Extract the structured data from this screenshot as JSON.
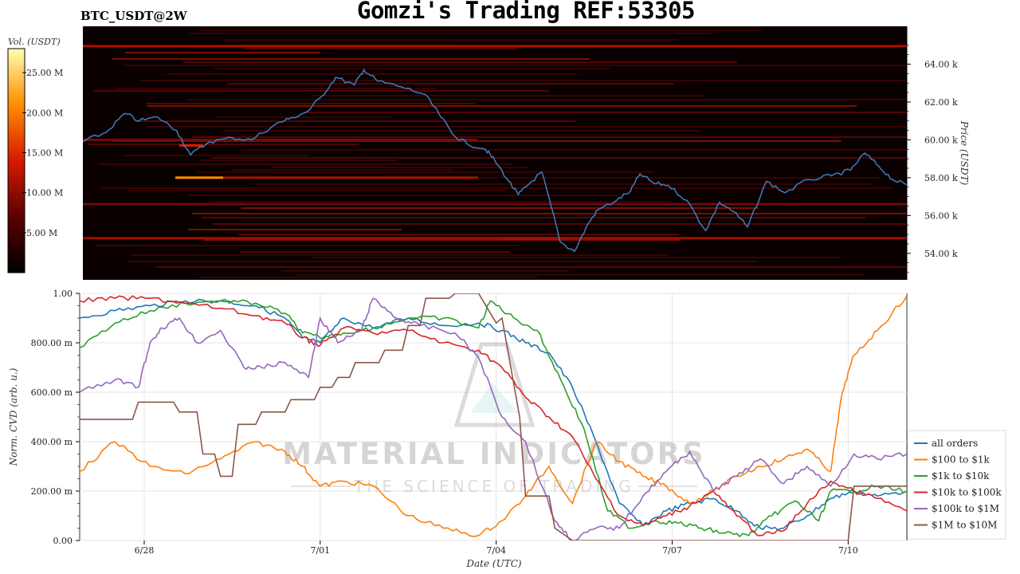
{
  "title": "Gomzi's Trading REF:53305",
  "ticker": "BTC_USDT@2W",
  "colors": {
    "price_line": "#3b7fc1",
    "heatmap_bg": "#0a0000",
    "grid": "#e6e6e6"
  },
  "chart_data": [
    {
      "type": "heatmap",
      "subtitle": "BTC_USDT@2W",
      "ylabel": "Price (USDT)",
      "colorbar_label": "Vol. (USDT)",
      "colorbar_ticks": [
        "25.00 M",
        "20.00 M",
        "15.00 M",
        "10.00 M",
        "5.00 M"
      ],
      "colorbar_range": [
        0,
        28
      ],
      "y_ticks": [
        "64.00 k",
        "62.00 k",
        "60.00 k",
        "58.00 k",
        "56.00 k",
        "54.00 k"
      ],
      "y_tick_values": [
        64000,
        62000,
        60000,
        58000,
        56000,
        54000
      ],
      "ylim": [
        52600,
        66000
      ],
      "xlim": [
        0,
        14
      ],
      "price_series": [
        [
          0,
          59.9
        ],
        [
          0.5,
          60.4
        ],
        [
          0.9,
          61.4
        ],
        [
          1.2,
          61
        ],
        [
          1.6,
          61.2
        ],
        [
          2,
          60.5
        ],
        [
          2.3,
          59.2
        ],
        [
          2.7,
          59.9
        ],
        [
          3.2,
          60.1
        ],
        [
          3.6,
          60
        ],
        [
          4.1,
          60.8
        ],
        [
          4.4,
          61.1
        ],
        [
          4.8,
          61.5
        ],
        [
          5.1,
          62.3
        ],
        [
          5.4,
          63.3
        ],
        [
          5.8,
          62.9
        ],
        [
          6,
          63.7
        ],
        [
          6.3,
          63.1
        ],
        [
          6.8,
          62.8
        ],
        [
          7.3,
          62.4
        ],
        [
          7.6,
          61.4
        ],
        [
          7.9,
          60.3
        ],
        [
          8.2,
          59.8
        ],
        [
          8.6,
          59.5
        ],
        [
          8.8,
          58.9
        ],
        [
          9.1,
          57.8
        ],
        [
          9.3,
          57.1
        ],
        [
          9.5,
          57.6
        ],
        [
          9.8,
          58.3
        ],
        [
          10,
          56.5
        ],
        [
          10.2,
          54.6
        ],
        [
          10.5,
          54.1
        ],
        [
          10.8,
          55.6
        ],
        [
          11,
          56.3
        ],
        [
          11.4,
          56.8
        ],
        [
          11.7,
          57.3
        ],
        [
          11.9,
          58.2
        ],
        [
          12.2,
          57.7
        ],
        [
          12.5,
          57.6
        ],
        [
          12.9,
          56.8
        ],
        [
          13.3,
          55.2
        ],
        [
          13.6,
          56.7
        ],
        [
          13.9,
          56.2
        ],
        [
          14.2,
          55.4
        ],
        [
          14.6,
          57.8
        ],
        [
          15,
          57.2
        ],
        [
          15.5,
          57.9
        ],
        [
          16,
          58.1
        ],
        [
          16.4,
          58.4
        ],
        [
          16.7,
          59.3
        ],
        [
          17,
          58.6
        ],
        [
          17.3,
          57.9
        ],
        [
          17.6,
          57.6
        ]
      ],
      "price_unit": "k USDT",
      "price_x_domain": [
        0,
        17.6
      ]
    },
    {
      "type": "line",
      "ylabel": "Norm. CVD (arb. u.)",
      "xlabel": "Date (UTC)",
      "x_ticks": [
        "6/28",
        "7/01",
        "7/04",
        "7/07",
        "7/10"
      ],
      "x_tick_values": [
        1.1,
        4.1,
        7.1,
        10.1,
        13.1
      ],
      "xlim": [
        0,
        14.1
      ],
      "y_ticks": [
        "1.00",
        "800.00 m",
        "600.00 m",
        "400.00 m",
        "200.00 m",
        "0.00"
      ],
      "y_tick_values": [
        1.0,
        0.8,
        0.6,
        0.4,
        0.2,
        0.0
      ],
      "ylim": [
        0,
        1.0
      ],
      "legend_position": "lower-right",
      "watermark": [
        "MATERIAL INDICATORS",
        "THE SCIENCE OF TRADING"
      ],
      "series": [
        {
          "name": "all orders",
          "color": "#1f77b4",
          "x": [
            0,
            0.6,
            1.2,
            1.8,
            2.4,
            3,
            3.5,
            3.8,
            4.1,
            4.5,
            5,
            5.6,
            6.2,
            6.8,
            7.2,
            7.6,
            8,
            8.4,
            8.8,
            9.2,
            9.6,
            10,
            10.4,
            10.8,
            11.2,
            11.6,
            12,
            12.4,
            12.8,
            13.2,
            13.6,
            14.1
          ],
          "y": [
            0.9,
            0.93,
            0.95,
            0.97,
            0.97,
            0.95,
            0.9,
            0.82,
            0.8,
            0.9,
            0.86,
            0.9,
            0.87,
            0.88,
            0.85,
            0.8,
            0.76,
            0.62,
            0.4,
            0.15,
            0.06,
            0.12,
            0.15,
            0.17,
            0.12,
            0.05,
            0.05,
            0.1,
            0.17,
            0.2,
            0.18,
            0.2
          ]
        },
        {
          "name": "$100 to $1k",
          "color": "#ff7f0e",
          "x": [
            0,
            0.6,
            1.2,
            1.8,
            2.4,
            3,
            3.5,
            3.8,
            4.1,
            4.5,
            5,
            5.6,
            6.2,
            6.8,
            7.2,
            7.6,
            8,
            8.4,
            8.8,
            9.2,
            9.6,
            10,
            10.4,
            10.8,
            11.2,
            11.6,
            12,
            12.4,
            12.8,
            13,
            13.2,
            13.6,
            14.1
          ],
          "y": [
            0.28,
            0.4,
            0.3,
            0.27,
            0.33,
            0.4,
            0.36,
            0.3,
            0.22,
            0.24,
            0.22,
            0.1,
            0.05,
            0.02,
            0.08,
            0.18,
            0.3,
            0.15,
            0.4,
            0.32,
            0.26,
            0.22,
            0.15,
            0.2,
            0.26,
            0.3,
            0.33,
            0.37,
            0.28,
            0.6,
            0.75,
            0.85,
            0.99
          ]
        },
        {
          "name": "$1k to $10k",
          "color": "#2ca02c",
          "x": [
            0,
            0.6,
            1.2,
            1.8,
            2.4,
            3,
            3.5,
            3.8,
            4.1,
            4.5,
            5,
            5.6,
            6.2,
            6.8,
            7,
            7.4,
            7.8,
            8.2,
            8.6,
            9,
            9.4,
            9.8,
            10.2,
            10.6,
            11,
            11.4,
            11.8,
            12.2,
            12.6,
            12.8,
            13.2,
            13.6,
            14.1
          ],
          "y": [
            0.78,
            0.88,
            0.93,
            0.96,
            0.97,
            0.96,
            0.92,
            0.84,
            0.82,
            0.84,
            0.86,
            0.9,
            0.9,
            0.86,
            0.97,
            0.9,
            0.85,
            0.65,
            0.45,
            0.12,
            0.05,
            0.08,
            0.07,
            0.05,
            0.03,
            0.02,
            0.1,
            0.16,
            0.08,
            0.2,
            0.2,
            0.22,
            0.2
          ]
        },
        {
          "name": "$10k to $100k",
          "color": "#d62728",
          "x": [
            0,
            0.6,
            1.2,
            1.8,
            2.4,
            3,
            3.5,
            3.8,
            4.1,
            4.5,
            5,
            5.6,
            6.2,
            6.8,
            7.2,
            7.6,
            8,
            8.4,
            8.8,
            9.2,
            9.6,
            10,
            10.4,
            10.8,
            11.2,
            11.6,
            12,
            12.4,
            12.8,
            13.2,
            13.6,
            14.1
          ],
          "y": [
            0.97,
            0.98,
            0.98,
            0.96,
            0.94,
            0.91,
            0.88,
            0.82,
            0.79,
            0.86,
            0.84,
            0.85,
            0.8,
            0.77,
            0.7,
            0.58,
            0.5,
            0.42,
            0.25,
            0.1,
            0.06,
            0.1,
            0.14,
            0.2,
            0.1,
            0.02,
            0.04,
            0.15,
            0.24,
            0.2,
            0.17,
            0.12
          ]
        },
        {
          "name": "$100k to $1M",
          "color": "#9467bd",
          "x": [
            0,
            0.6,
            1,
            1.2,
            1.4,
            1.7,
            2,
            2.4,
            2.8,
            3.1,
            3.5,
            3.9,
            4.1,
            4.4,
            4.8,
            5,
            5.4,
            5.8,
            6.4,
            6.8,
            7.2,
            7.6,
            8.1,
            8.4,
            8.8,
            9.2,
            9.6,
            10,
            10.4,
            10.8,
            11.2,
            11.6,
            12,
            12.4,
            12.8,
            13.2,
            13.6,
            14.1
          ],
          "y": [
            0.6,
            0.65,
            0.62,
            0.8,
            0.86,
            0.9,
            0.8,
            0.85,
            0.7,
            0.7,
            0.72,
            0.66,
            0.9,
            0.8,
            0.85,
            0.98,
            0.9,
            0.87,
            0.84,
            0.74,
            0.5,
            0.4,
            0.08,
            0.0,
            0.05,
            0.05,
            0.18,
            0.28,
            0.36,
            0.2,
            0.26,
            0.33,
            0.23,
            0.3,
            0.22,
            0.35,
            0.33,
            0.35
          ]
        },
        {
          "name": "$1M to $10M",
          "color": "#8c564b",
          "x": [
            0,
            0.9,
            1,
            1.6,
            1.7,
            2,
            2.1,
            2.3,
            2.4,
            2.6,
            2.7,
            3,
            3.1,
            3.5,
            3.6,
            4,
            4.1,
            4.3,
            4.4,
            4.6,
            4.7,
            5.1,
            5.2,
            5.5,
            5.6,
            5.8,
            5.9,
            6.3,
            6.4,
            6.8,
            7.1,
            7.2,
            7.5,
            7.6,
            8,
            8.1,
            8.4,
            13.1,
            13.2,
            14.1
          ],
          "y": [
            0.49,
            0.49,
            0.56,
            0.56,
            0.52,
            0.52,
            0.35,
            0.35,
            0.26,
            0.26,
            0.47,
            0.47,
            0.52,
            0.52,
            0.57,
            0.57,
            0.62,
            0.62,
            0.66,
            0.66,
            0.72,
            0.72,
            0.77,
            0.77,
            0.87,
            0.87,
            0.98,
            0.98,
            1.0,
            1.0,
            0.88,
            0.9,
            0.5,
            0.18,
            0.18,
            0.05,
            0.0,
            0.0,
            0.22,
            0.22
          ]
        }
      ]
    }
  ]
}
